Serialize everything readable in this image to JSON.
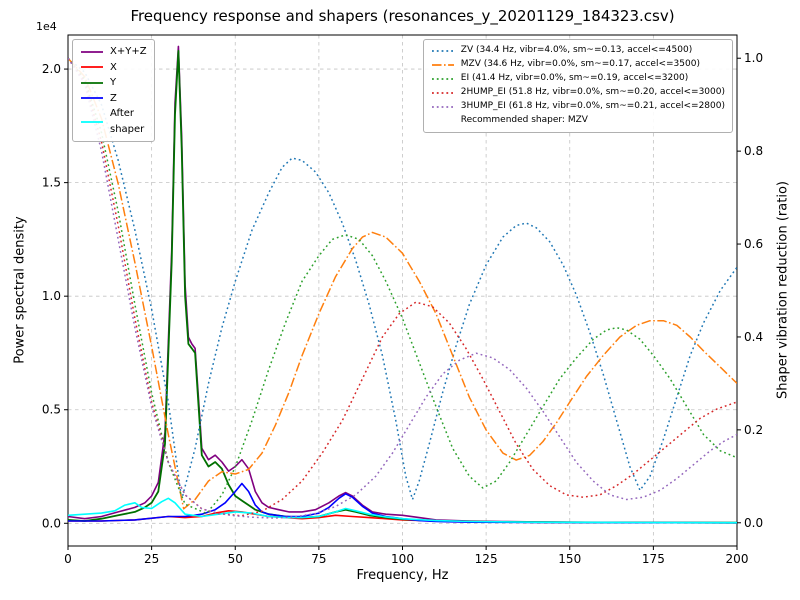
{
  "figure": {
    "title": "Frequency response and shapers (resonances_y_20201129_184323.csv)",
    "xlabel": "Frequency, Hz",
    "ylabel_left": "Power spectral density",
    "ylabel_right": "Shaper vibration reduction (ratio)",
    "offset_text": "1e4",
    "background": "#ffffff"
  },
  "chart_data": {
    "type": "line",
    "xlim": [
      0,
      200
    ],
    "x_ticks": [
      0,
      25,
      50,
      75,
      100,
      125,
      150,
      175,
      200
    ],
    "ylim_left": [
      -1000,
      21500
    ],
    "yticks_left": {
      "values": [
        0,
        5000,
        10000,
        15000,
        20000
      ],
      "labels": [
        "0.0",
        "0.5",
        "1.0",
        "1.5",
        "2.0"
      ]
    },
    "ylim_right": [
      -0.05,
      1.05
    ],
    "yticks_right": {
      "values": [
        0,
        0.2,
        0.4,
        0.6,
        0.8,
        1.0
      ],
      "labels": [
        "0.0",
        "0.2",
        "0.4",
        "0.6",
        "0.8",
        "1.0"
      ]
    },
    "grid": true,
    "recommendation": "Recommended shaper: MZV",
    "psd_series": [
      {
        "name": "x-y-z-sum",
        "label": "X+Y+Z",
        "color": "#800080",
        "style": "solid",
        "width": 1.6,
        "axis": "left",
        "x": [
          0,
          5,
          10,
          15,
          20,
          23,
          25,
          27,
          29,
          31,
          32,
          33,
          34,
          35,
          36,
          37,
          38,
          39,
          40,
          42,
          44,
          46,
          48,
          50,
          52,
          54,
          56,
          58,
          60,
          63,
          66,
          70,
          74,
          78,
          81,
          83,
          85,
          88,
          91,
          95,
          100,
          105,
          110,
          120,
          130,
          140,
          150,
          160,
          170,
          180,
          190,
          200
        ],
        "y": [
          300,
          200,
          300,
          500,
          700,
          900,
          1200,
          1800,
          4000,
          12000,
          18500,
          21000,
          17000,
          10500,
          8200,
          7900,
          7700,
          5500,
          3300,
          2800,
          3000,
          2700,
          2300,
          2500,
          2800,
          2400,
          1400,
          900,
          700,
          600,
          500,
          500,
          600,
          900,
          1200,
          1350,
          1200,
          800,
          500,
          400,
          350,
          250,
          150,
          100,
          80,
          60,
          50,
          40,
          35,
          30,
          25,
          20
        ]
      },
      {
        "name": "x",
        "label": "X",
        "color": "#ff0000",
        "style": "solid",
        "width": 1.6,
        "axis": "left",
        "x": [
          0,
          10,
          20,
          30,
          35,
          40,
          44,
          48,
          52,
          56,
          60,
          65,
          70,
          75,
          80,
          85,
          90,
          95,
          100,
          110,
          120,
          140,
          160,
          180,
          200
        ],
        "y": [
          100,
          100,
          150,
          300,
          250,
          300,
          450,
          550,
          500,
          400,
          300,
          250,
          200,
          250,
          350,
          300,
          250,
          200,
          150,
          100,
          80,
          50,
          40,
          30,
          25
        ]
      },
      {
        "name": "y",
        "label": "Y",
        "color": "#007000",
        "style": "solid",
        "width": 1.8,
        "axis": "left",
        "x": [
          0,
          5,
          10,
          15,
          20,
          23,
          25,
          27,
          29,
          31,
          32,
          33,
          34,
          35,
          36,
          37,
          38,
          39,
          40,
          42,
          44,
          46,
          48,
          50,
          52,
          54,
          56,
          60,
          65,
          70,
          75,
          80,
          83,
          86,
          90,
          95,
          100,
          110,
          120,
          140,
          160,
          180,
          200
        ],
        "y": [
          150,
          100,
          200,
          350,
          500,
          700,
          900,
          1400,
          3500,
          11500,
          18000,
          20800,
          16500,
          10000,
          7900,
          7700,
          7500,
          5200,
          3000,
          2500,
          2700,
          2400,
          1700,
          1200,
          1000,
          800,
          600,
          400,
          300,
          250,
          300,
          500,
          600,
          500,
          350,
          250,
          180,
          100,
          70,
          50,
          40,
          30,
          25
        ]
      },
      {
        "name": "z",
        "label": "Z",
        "color": "#0000ff",
        "style": "solid",
        "width": 1.6,
        "axis": "left",
        "x": [
          0,
          10,
          20,
          30,
          35,
          40,
          44,
          47,
          50,
          52,
          54,
          56,
          58,
          60,
          65,
          70,
          75,
          78,
          81,
          83,
          85,
          88,
          91,
          95,
          100,
          105,
          110,
          120,
          140,
          160,
          180,
          200
        ],
        "y": [
          100,
          100,
          150,
          300,
          300,
          400,
          600,
          900,
          1400,
          1750,
          1400,
          800,
          500,
          400,
          300,
          300,
          450,
          700,
          1100,
          1300,
          1150,
          750,
          450,
          300,
          200,
          120,
          80,
          50,
          40,
          30,
          25,
          20
        ]
      },
      {
        "name": "after-shaper",
        "label": "After\nshaper",
        "color": "#00ffff",
        "style": "solid",
        "width": 1.6,
        "axis": "left",
        "x": [
          0,
          5,
          10,
          14,
          17,
          20,
          22,
          25,
          28,
          30,
          32,
          35,
          40,
          45,
          50,
          55,
          60,
          65,
          70,
          75,
          80,
          83,
          86,
          90,
          95,
          100,
          110,
          120,
          140,
          160,
          180,
          200
        ],
        "y": [
          350,
          400,
          450,
          550,
          800,
          900,
          700,
          650,
          950,
          1100,
          900,
          400,
          300,
          400,
          500,
          450,
          300,
          250,
          250,
          300,
          500,
          650,
          550,
          400,
          280,
          200,
          120,
          80,
          50,
          40,
          30,
          25
        ]
      }
    ],
    "shaper_series": [
      {
        "name": "zv",
        "label": "ZV (34.4 Hz, vibr=4.0%, sm~=0.13, accel<=4500)",
        "color": "#1f77b4",
        "style": "dotted",
        "width": 1.5,
        "axis": "right",
        "x": [
          0,
          5,
          10,
          15,
          20,
          25,
          30,
          34,
          38,
          42,
          46,
          50,
          55,
          60,
          64,
          67,
          70,
          74,
          78,
          82,
          86,
          90,
          94,
          98,
          101,
          103,
          105,
          108,
          112,
          116,
          120,
          125,
          130,
          134,
          137,
          140,
          144,
          148,
          152,
          156,
          160,
          164,
          168,
          171,
          174,
          178,
          182,
          186,
          190,
          195,
          200
        ],
        "y": [
          1.0,
          0.97,
          0.9,
          0.78,
          0.63,
          0.46,
          0.26,
          0.05,
          0.16,
          0.3,
          0.42,
          0.52,
          0.63,
          0.71,
          0.765,
          0.785,
          0.78,
          0.755,
          0.71,
          0.645,
          0.565,
          0.47,
          0.36,
          0.22,
          0.1,
          0.05,
          0.09,
          0.17,
          0.28,
          0.38,
          0.47,
          0.555,
          0.615,
          0.64,
          0.645,
          0.635,
          0.605,
          0.555,
          0.49,
          0.41,
          0.32,
          0.22,
          0.12,
          0.07,
          0.1,
          0.18,
          0.27,
          0.36,
          0.43,
          0.5,
          0.55
        ]
      },
      {
        "name": "mzv",
        "label": "MZV (34.6 Hz, vibr=0.0%, sm~=0.17, accel<=3500)",
        "color": "#ff7f0e",
        "style": "dashdot",
        "width": 1.5,
        "axis": "right",
        "x": [
          0,
          5,
          10,
          15,
          20,
          25,
          30,
          34.6,
          38,
          42,
          46,
          50,
          54,
          58,
          62,
          66,
          70,
          75,
          80,
          85,
          88,
          91,
          95,
          100,
          105,
          110,
          115,
          120,
          125,
          130,
          134,
          138,
          142,
          146,
          150,
          155,
          160,
          165,
          170,
          174,
          178,
          182,
          186,
          190,
          195,
          200
        ],
        "y": [
          1.0,
          0.96,
          0.87,
          0.73,
          0.56,
          0.38,
          0.19,
          0.03,
          0.05,
          0.09,
          0.11,
          0.105,
          0.115,
          0.15,
          0.21,
          0.28,
          0.36,
          0.45,
          0.53,
          0.59,
          0.615,
          0.625,
          0.615,
          0.58,
          0.52,
          0.45,
          0.36,
          0.27,
          0.2,
          0.15,
          0.135,
          0.145,
          0.175,
          0.215,
          0.26,
          0.315,
          0.36,
          0.4,
          0.425,
          0.435,
          0.435,
          0.425,
          0.4,
          0.37,
          0.335,
          0.3
        ]
      },
      {
        "name": "ei",
        "label": "EI (41.4 Hz, vibr=0.0%, sm~=0.19, accel<=3200)",
        "color": "#2ca02c",
        "style": "dotted",
        "width": 1.5,
        "axis": "right",
        "x": [
          0,
          5,
          10,
          15,
          20,
          25,
          30,
          35,
          41.4,
          46,
          50,
          55,
          60,
          65,
          70,
          75,
          79,
          83,
          87,
          91,
          95,
          100,
          105,
          110,
          115,
          120,
          124,
          128,
          132,
          137,
          142,
          147,
          152,
          157,
          161,
          164,
          167,
          171,
          175,
          180,
          185,
          190,
          195,
          200
        ],
        "y": [
          1.0,
          0.955,
          0.84,
          0.67,
          0.47,
          0.28,
          0.13,
          0.04,
          0.02,
          0.06,
          0.12,
          0.22,
          0.33,
          0.43,
          0.52,
          0.575,
          0.61,
          0.62,
          0.61,
          0.575,
          0.52,
          0.44,
          0.345,
          0.25,
          0.16,
          0.1,
          0.075,
          0.09,
          0.13,
          0.19,
          0.25,
          0.31,
          0.355,
          0.395,
          0.415,
          0.42,
          0.415,
          0.395,
          0.36,
          0.31,
          0.25,
          0.19,
          0.155,
          0.14
        ]
      },
      {
        "name": "2hump-ei",
        "label": "2HUMP_EI (51.8 Hz, vibr=0.0%, sm~=0.20, accel<=3000)",
        "color": "#d62728",
        "style": "dotted",
        "width": 1.5,
        "axis": "right",
        "x": [
          0,
          5,
          10,
          15,
          20,
          25,
          30,
          35,
          40,
          45,
          51.8,
          58,
          64,
          70,
          76,
          82,
          88,
          94,
          99,
          104,
          109,
          114,
          119,
          124,
          129,
          134,
          139,
          144,
          149,
          154,
          159,
          164,
          169,
          174,
          179,
          184,
          189,
          194,
          200
        ],
        "y": [
          1.0,
          0.95,
          0.82,
          0.64,
          0.44,
          0.26,
          0.13,
          0.06,
          0.03,
          0.02,
          0.015,
          0.025,
          0.05,
          0.09,
          0.15,
          0.22,
          0.31,
          0.4,
          0.45,
          0.475,
          0.465,
          0.43,
          0.375,
          0.31,
          0.24,
          0.17,
          0.115,
          0.08,
          0.06,
          0.055,
          0.06,
          0.08,
          0.105,
          0.135,
          0.165,
          0.195,
          0.225,
          0.245,
          0.26
        ]
      },
      {
        "name": "3hump-ei",
        "label": "3HUMP_EI (61.8 Hz, vibr=0.0%, sm~=0.21, accel<=2800)",
        "color": "#9467bd",
        "style": "dotted",
        "width": 1.5,
        "axis": "right",
        "x": [
          0,
          5,
          10,
          15,
          20,
          25,
          30,
          35,
          40,
          45,
          50,
          55,
          61.8,
          68,
          74,
          80,
          86,
          92,
          97,
          102,
          107,
          112,
          117,
          122,
          127,
          132,
          137,
          142,
          147,
          152,
          157,
          162,
          167,
          172,
          177,
          182,
          187,
          192,
          196,
          200
        ],
        "y": [
          1.0,
          0.945,
          0.8,
          0.61,
          0.42,
          0.25,
          0.13,
          0.06,
          0.03,
          0.02,
          0.015,
          0.012,
          0.01,
          0.013,
          0.02,
          0.035,
          0.06,
          0.1,
          0.15,
          0.21,
          0.27,
          0.32,
          0.35,
          0.365,
          0.355,
          0.33,
          0.29,
          0.24,
          0.185,
          0.13,
          0.09,
          0.06,
          0.05,
          0.055,
          0.07,
          0.095,
          0.125,
          0.155,
          0.175,
          0.19
        ]
      }
    ]
  }
}
